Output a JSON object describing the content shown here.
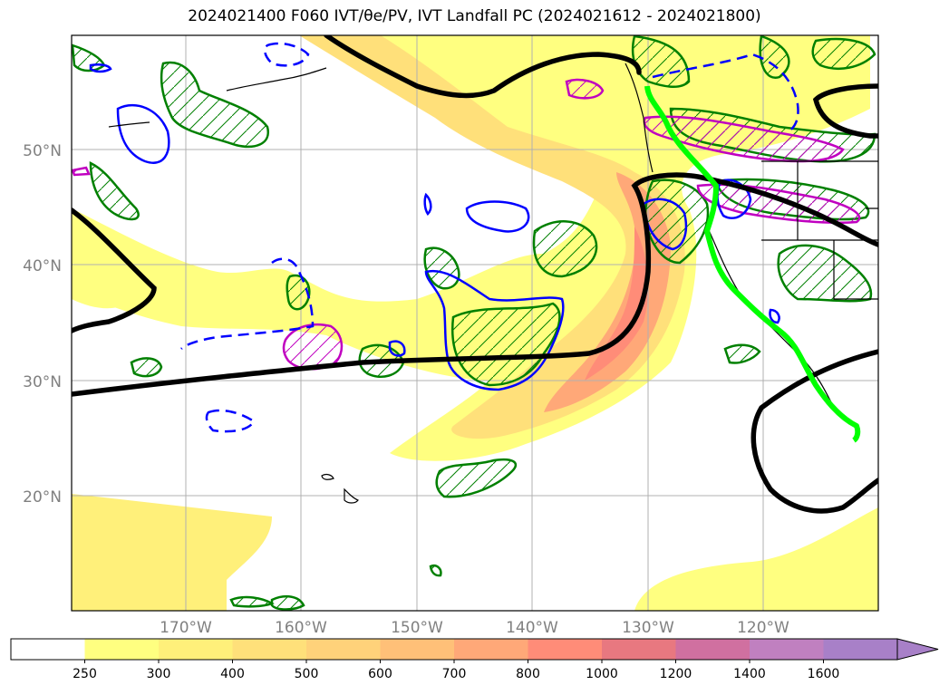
{
  "title": "2024021400 F060 IVT/θe/PV, IVT Landfall PC (2024021612 - 2024021800)",
  "map": {
    "lat_labels": [
      "50°N",
      "40°N",
      "30°N",
      "20°N"
    ],
    "lon_labels": [
      "170°W",
      "160°W",
      "150°W",
      "140°W",
      "130°W",
      "120°W"
    ]
  },
  "colorbar": {
    "ticks": [
      "250",
      "300",
      "400",
      "500",
      "600",
      "700",
      "800",
      "1000",
      "1200",
      "1400",
      "1600"
    ],
    "colors": [
      "#ffffff",
      "#ffff80",
      "#fff07a",
      "#ffe07a",
      "#ffd27a",
      "#ffc078",
      "#ffa878",
      "#ff8c78",
      "#e87880",
      "#d070a0",
      "#c080c0",
      "#a880c8"
    ]
  },
  "legend_colors": {
    "theta_e_contour": "#000000",
    "pv_positive": "#0000ff",
    "pv_hatched_green": "#008000",
    "pv_hatched_magenta": "#c000c0",
    "landfall_track": "#00ff00"
  }
}
